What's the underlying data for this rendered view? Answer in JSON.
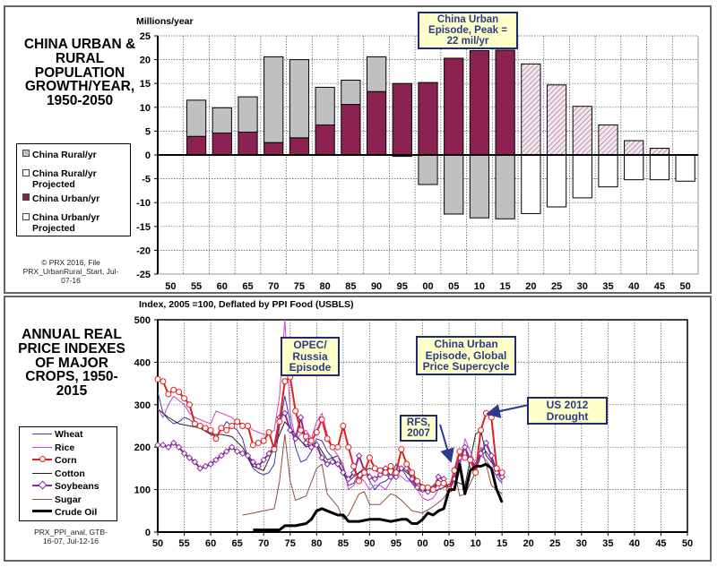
{
  "top": {
    "title": "CHINA URBAN & RURAL POPULATION GROWTH/YEAR, 1950-2050",
    "credit_lines": [
      "© PRX 2016, File",
      "PRX_UrbanRural_Start, Jul-",
      "07-16"
    ],
    "legend": [
      {
        "label": "China Rural/yr",
        "color": "#c0c0c0"
      },
      {
        "label": "China Rural/yr Projected",
        "color": "#ffffff"
      },
      {
        "label": "China Urban/yr",
        "color": "#8b2252"
      },
      {
        "label": "China Urban/yr Projected",
        "color": "#ffffff"
      }
    ],
    "annotation": "China Urban Episode, Peak = 22 mil/yr"
  },
  "bottom": {
    "title": "ANNUAL REAL PRICE INDEXES OF MAJOR CROPS, 1950-2015",
    "credit_lines": [
      "PRX_PPI_anal, GTB-",
      "16-07, Jul-12-16"
    ],
    "annotations": {
      "opec": "OPEC/ Russia Episode",
      "china": "China Urban Episode, Global Price Supercycle",
      "drought": "US 2012 Drought",
      "rfs": "RFS, 2007"
    }
  },
  "chart_data": [
    {
      "type": "bar",
      "title": "China Urban & Rural Population Growth/Year, 1950-2050",
      "ylabel": "Millions/year",
      "xlabel": "",
      "ylim": [
        -25,
        25
      ],
      "yticks": [
        25,
        20,
        15,
        10,
        5,
        0,
        -5,
        -10,
        -15,
        -20,
        -25
      ],
      "categories": [
        "50",
        "55",
        "60",
        "65",
        "70",
        "75",
        "80",
        "85",
        "90",
        "95",
        "00",
        "05",
        "10",
        "15",
        "20",
        "25",
        "30",
        "35",
        "40",
        "45",
        "50"
      ],
      "grid": true,
      "legend_position": "left",
      "series": [
        {
          "name": "China Urban/yr",
          "color": "#8b2252",
          "values": [
            null,
            3.9,
            4.6,
            4.8,
            2.6,
            3.6,
            6.3,
            10.6,
            13.3,
            15.0,
            15.2,
            20.3,
            21.9,
            22.0,
            null,
            null,
            null,
            null,
            null,
            null,
            null
          ]
        },
        {
          "name": "China Rural/yr",
          "color": "#c0c0c0",
          "values": [
            null,
            7.6,
            5.3,
            7.4,
            18.0,
            16.4,
            7.9,
            5.1,
            7.3,
            -0.3,
            -6.2,
            -12.4,
            -13.2,
            -13.4,
            null,
            null,
            null,
            null,
            null,
            null,
            null
          ]
        },
        {
          "name": "China Urban/yr Projected",
          "color": "#d8b8c8",
          "pattern": "hatched",
          "values": [
            null,
            null,
            null,
            null,
            null,
            null,
            null,
            null,
            null,
            null,
            null,
            null,
            null,
            null,
            19.1,
            14.7,
            10.2,
            6.3,
            3.0,
            1.4,
            null
          ]
        },
        {
          "name": "China Rural/yr Projected",
          "color": "#ffffff",
          "values": [
            null,
            null,
            null,
            null,
            null,
            null,
            null,
            null,
            null,
            null,
            null,
            null,
            null,
            null,
            -12.3,
            -10.9,
            -9.0,
            -6.7,
            -5.2,
            -5.2,
            -5.5
          ]
        }
      ],
      "annotations": [
        "China Urban Episode, Peak = 22 mil/yr"
      ]
    },
    {
      "type": "line",
      "title": "Annual Real Price Indexes of Major Crops, 1950-2015",
      "ylabel": "Index, 2005 =100, Deflated by PPI Food (USBLS)",
      "xlabel": "",
      "ylim": [
        0,
        500
      ],
      "yticks": [
        0,
        100,
        200,
        300,
        400,
        500
      ],
      "xticks": [
        "50",
        "55",
        "60",
        "65",
        "70",
        "75",
        "80",
        "85",
        "90",
        "95",
        "00",
        "05",
        "10",
        "15",
        "20",
        "25",
        "30",
        "35",
        "40",
        "45",
        "50"
      ],
      "xlim": [
        1950,
        2050
      ],
      "grid": true,
      "legend_position": "left",
      "series": [
        {
          "name": "Wheat",
          "color": "#3a3aa8",
          "width": 1,
          "x": [
            1950,
            1951,
            1952,
            1953,
            1954,
            1955,
            1956,
            1957,
            1958,
            1959,
            1960,
            1961,
            1962,
            1963,
            1964,
            1965,
            1966,
            1967,
            1968,
            1969,
            1970,
            1971,
            1972,
            1973,
            1974,
            1975,
            1976,
            1977,
            1978,
            1979,
            1980,
            1981,
            1982,
            1983,
            1984,
            1985,
            1986,
            1987,
            1988,
            1989,
            1990,
            1991,
            1992,
            1993,
            1994,
            1995,
            1996,
            1997,
            1998,
            1999,
            2000,
            2001,
            2002,
            2003,
            2004,
            2005,
            2006,
            2007,
            2008,
            2009,
            2010,
            2011,
            2012,
            2013,
            2014,
            2015
          ],
          "y": [
            330,
            280,
            265,
            255,
            260,
            270,
            265,
            255,
            245,
            240,
            230,
            225,
            240,
            260,
            250,
            240,
            220,
            175,
            150,
            140,
            135,
            140,
            160,
            250,
            320,
            260,
            200,
            165,
            170,
            190,
            220,
            215,
            190,
            175,
            160,
            140,
            110,
            115,
            140,
            150,
            120,
            100,
            115,
            120,
            130,
            160,
            150,
            130,
            115,
            100,
            95,
            100,
            110,
            120,
            115,
            100,
            120,
            160,
            200,
            150,
            140,
            180,
            190,
            170,
            130,
            115
          ]
        },
        {
          "name": "Rice",
          "color": "#cc44cc",
          "width": 1,
          "x": [
            1950,
            1951,
            1952,
            1953,
            1954,
            1955,
            1956,
            1957,
            1958,
            1959,
            1960,
            1961,
            1962,
            1963,
            1964,
            1965,
            1966,
            1967,
            1968,
            1969,
            1970,
            1971,
            1972,
            1973,
            1974,
            1975,
            1976,
            1977,
            1978,
            1979,
            1980,
            1981,
            1982,
            1983,
            1984,
            1985,
            1986,
            1987,
            1988,
            1989,
            1990,
            1991,
            1992,
            1993,
            1994,
            1995,
            1996,
            1997,
            1998,
            1999,
            2000,
            2001,
            2002,
            2003,
            2004,
            2005,
            2006,
            2007,
            2008,
            2009,
            2010,
            2011,
            2012,
            2013,
            2014,
            2015
          ],
          "y": [
            290,
            270,
            300,
            320,
            310,
            300,
            280,
            270,
            265,
            260,
            255,
            285,
            280,
            275,
            270,
            260,
            255,
            250,
            240,
            235,
            230,
            230,
            240,
            320,
            500,
            280,
            220,
            230,
            240,
            220,
            260,
            280,
            230,
            200,
            180,
            160,
            100,
            110,
            130,
            120,
            100,
            110,
            110,
            100,
            120,
            140,
            130,
            120,
            120,
            100,
            80,
            75,
            80,
            100,
            130,
            100,
            120,
            150,
            220,
            190,
            160,
            180,
            170,
            150,
            140,
            120
          ]
        },
        {
          "name": "Corn",
          "color": "#e0201c",
          "width": 2,
          "markers": "circle",
          "x": [
            1950,
            1951,
            1952,
            1953,
            1954,
            1955,
            1956,
            1957,
            1958,
            1959,
            1960,
            1961,
            1962,
            1963,
            1964,
            1965,
            1966,
            1967,
            1968,
            1969,
            1970,
            1971,
            1972,
            1973,
            1974,
            1975,
            1976,
            1977,
            1978,
            1979,
            1980,
            1981,
            1982,
            1983,
            1984,
            1985,
            1986,
            1987,
            1988,
            1989,
            1990,
            1991,
            1992,
            1993,
            1994,
            1995,
            1996,
            1997,
            1998,
            1999,
            2000,
            2001,
            2002,
            2003,
            2004,
            2005,
            2006,
            2007,
            2008,
            2009,
            2010,
            2011,
            2012,
            2013,
            2014,
            2015
          ],
          "y": [
            360,
            355,
            325,
            335,
            330,
            315,
            300,
            255,
            250,
            245,
            240,
            220,
            245,
            240,
            250,
            260,
            250,
            250,
            205,
            210,
            215,
            235,
            195,
            260,
            355,
            365,
            285,
            240,
            225,
            215,
            235,
            265,
            220,
            200,
            200,
            250,
            200,
            155,
            120,
            140,
            175,
            150,
            145,
            140,
            155,
            140,
            195,
            160,
            140,
            120,
            105,
            105,
            100,
            115,
            115,
            100,
            145,
            190,
            175,
            170,
            140,
            240,
            280,
            270,
            150,
            140
          ]
        },
        {
          "name": "Cotton",
          "color": "#222222",
          "width": 1,
          "x": [
            1950,
            1952,
            1954,
            1956,
            1958,
            1960,
            1962,
            1964,
            1966,
            1968,
            1970,
            1972,
            1974,
            1976,
            1978,
            1980,
            1982,
            1984,
            1986,
            1988,
            1990,
            1992,
            1994,
            1996,
            1998,
            2000,
            2002,
            2004,
            2006,
            2008,
            2010,
            2011,
            2012,
            2014,
            2015
          ],
          "y": [
            290,
            270,
            255,
            250,
            245,
            230,
            230,
            225,
            200,
            155,
            145,
            200,
            260,
            230,
            200,
            210,
            170,
            180,
            120,
            140,
            150,
            140,
            130,
            150,
            130,
            110,
            95,
            105,
            120,
            110,
            230,
            240,
            180,
            150,
            140
          ]
        },
        {
          "name": "Soybeans",
          "color": "#8a2aa0",
          "width": 2,
          "markers": "diamond",
          "x": [
            1950,
            1951,
            1952,
            1953,
            1954,
            1955,
            1956,
            1957,
            1958,
            1959,
            1960,
            1961,
            1962,
            1963,
            1964,
            1965,
            1966,
            1967,
            1968,
            1969,
            1970,
            1971,
            1972,
            1973,
            1974,
            1975,
            1976,
            1977,
            1978,
            1979,
            1980,
            1981,
            1982,
            1983,
            1984,
            1985,
            1986,
            1987,
            1988,
            1989,
            1990,
            1991,
            1992,
            1993,
            1994,
            1995,
            1996,
            1997,
            1998,
            1999,
            2000,
            2001,
            2002,
            2003,
            2004,
            2005,
            2006,
            2007,
            2008,
            2009,
            2010,
            2011,
            2012,
            2013,
            2014,
            2015
          ],
          "y": [
            205,
            205,
            200,
            210,
            200,
            185,
            175,
            165,
            150,
            155,
            160,
            170,
            180,
            190,
            200,
            190,
            185,
            180,
            165,
            155,
            170,
            185,
            200,
            270,
            280,
            240,
            220,
            270,
            210,
            200,
            205,
            175,
            160,
            165,
            160,
            140,
            125,
            140,
            180,
            145,
            130,
            125,
            135,
            150,
            130,
            130,
            150,
            150,
            125,
            105,
            100,
            95,
            100,
            130,
            125,
            100,
            125,
            175,
            200,
            170,
            155,
            185,
            210,
            180,
            140,
            130
          ]
        },
        {
          "name": "Sugar",
          "color": "#8a5040",
          "width": 1,
          "x": [
            1966,
            1968,
            1970,
            1972,
            1973,
            1974,
            1975,
            1976,
            1978,
            1980,
            1981,
            1982,
            1984,
            1985,
            1986,
            1988,
            1989,
            1990,
            1992,
            1994,
            1995,
            1996,
            1998,
            2000,
            2002,
            2004,
            2005,
            2006,
            2007,
            2008,
            2010,
            2011,
            2012,
            2013,
            2014,
            2015
          ],
          "y": [
            40,
            45,
            50,
            55,
            120,
            230,
            120,
            75,
            85,
            150,
            160,
            90,
            60,
            30,
            40,
            90,
            95,
            65,
            65,
            90,
            85,
            75,
            50,
            45,
            60,
            80,
            100,
            145,
            85,
            90,
            140,
            200,
            160,
            110,
            100,
            90
          ]
        },
        {
          "name": "Crude Oil",
          "color": "#000000",
          "width": 3,
          "x": [
            1968,
            1970,
            1972,
            1973,
            1974,
            1976,
            1978,
            1979,
            1980,
            1981,
            1982,
            1983,
            1984,
            1985,
            1986,
            1987,
            1988,
            1990,
            1992,
            1994,
            1996,
            1997,
            1998,
            1999,
            2000,
            2001,
            2002,
            2003,
            2004,
            2005,
            2006,
            2007,
            2008,
            2009,
            2010,
            2011,
            2012,
            2013,
            2014,
            2015
          ],
          "y": [
            5,
            5,
            5,
            5,
            15,
            15,
            20,
            30,
            50,
            55,
            50,
            45,
            40,
            40,
            25,
            25,
            25,
            30,
            30,
            25,
            30,
            30,
            20,
            20,
            30,
            45,
            40,
            50,
            55,
            100,
            100,
            160,
            90,
            145,
            155,
            155,
            160,
            150,
            100,
            70
          ]
        }
      ],
      "annotations": [
        "OPEC/ Russia Episode",
        "China Urban Episode, Global Price Supercycle",
        "US 2012 Drought",
        "RFS, 2007"
      ]
    }
  ]
}
